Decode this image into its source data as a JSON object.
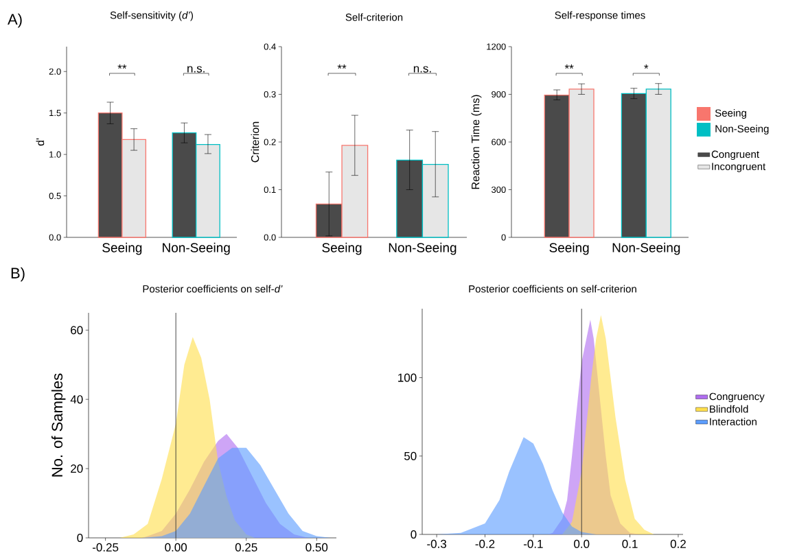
{
  "chart_data": [
    {
      "type": "bar",
      "title": "Self-sensitivity (*d’*)",
      "ylabel": "d'",
      "categories": [
        "Seeing",
        "Non-Seeing"
      ],
      "series": [
        {
          "color": "#4a4a4a",
          "values": [
            1.5,
            1.26
          ],
          "errors": [
            [
              1.37,
              1.63
            ],
            [
              1.14,
              1.38
            ]
          ]
        },
        {
          "color": "#e6e6e6",
          "values": [
            1.18,
            1.12
          ],
          "errors": [
            [
              1.05,
              1.31
            ],
            [
              1.01,
              1.24
            ]
          ]
        }
      ],
      "ylim": [
        0,
        2.3
      ],
      "yticks": [
        {
          "value": 0,
          "label": "0.0"
        },
        {
          "value": 0.5,
          "label": "0.5"
        },
        {
          "value": 1,
          "label": "1.0"
        },
        {
          "value": 1.5,
          "label": "1.5"
        },
        {
          "value": 2,
          "label": "2.0"
        }
      ],
      "annotations": [
        "A)",
        "**",
        "n.s."
      ]
    },
    {
      "type": "bar",
      "title": "Self-criterion",
      "ylabel": "Criterion",
      "categories": [
        "Seeing",
        "Non-Seeing"
      ],
      "series": [
        {
          "color": "#4a4a4a",
          "values": [
            0.07,
            0.162
          ],
          "errors": [
            [
              0.003,
              0.137
            ],
            [
              0.1,
              0.225
            ]
          ]
        },
        {
          "color": "#e6e6e6",
          "values": [
            0.193,
            0.153
          ],
          "errors": [
            [
              0.13,
              0.256
            ],
            [
              0.085,
              0.222
            ]
          ]
        }
      ],
      "ylim": [
        0,
        0.4
      ],
      "yticks": [
        {
          "value": 0,
          "label": "0.0"
        },
        0.1,
        0.2,
        0.3,
        0.4
      ],
      "annotations": [
        "**",
        "n.s."
      ]
    },
    {
      "type": "bar",
      "title": "Self-response times",
      "ylabel": "Reaction Time (ms)",
      "categories": [
        "Seeing",
        "Non-Seeing"
      ],
      "series": [
        {
          "name": "Congruent",
          "color": "#4a4a4a",
          "values": [
            895,
            905
          ],
          "errors": [
            [
              865,
              928
            ],
            [
              873,
              938
            ]
          ]
        },
        {
          "name": "Incongruent",
          "color": "#e6e6e6",
          "values": [
            933,
            933
          ],
          "errors": [
            [
              900,
              966
            ],
            [
              900,
              968
            ]
          ]
        }
      ],
      "ylim": [
        0,
        1200
      ],
      "yticks": [
        0,
        300,
        600,
        900,
        1200
      ],
      "legend": "right",
      "annotations": [
        "**",
        "*"
      ]
    },
    {
      "type": "other",
      "categories": [
        "Seeing",
        "Non-Seeing"
      ],
      "colors": [
        "#f8766d",
        "#00bfc4"
      ]
    },
    {
      "type": "area",
      "title": "Posterior coefficients on self-*d’*",
      "ylabel": "No. of Samples",
      "series": [
        {
          "color": "#b06ef0",
          "x": [
            -0.12,
            -0.1,
            -0.05,
            0,
            0.05,
            0.1,
            0.15,
            0.18,
            0.22,
            0.27,
            0.32,
            0.37,
            0.42,
            0.47
          ],
          "values": [
            0,
            0.5,
            2,
            7,
            14,
            22,
            28,
            30,
            26,
            18,
            10,
            4,
            1,
            0
          ]
        },
        {
          "color": "#ffdf4d",
          "x": [
            -0.2,
            -0.15,
            -0.1,
            -0.05,
            0,
            0.03,
            0.06,
            0.09,
            0.12,
            0.15,
            0.18,
            0.21,
            0.25,
            0.28
          ],
          "values": [
            0,
            1,
            4,
            17,
            33,
            50,
            58,
            52,
            40,
            22,
            12,
            5,
            1,
            0
          ]
        },
        {
          "color": "#5c9dff",
          "x": [
            -0.12,
            -0.05,
            0,
            0.05,
            0.1,
            0.15,
            0.2,
            0.25,
            0.3,
            0.35,
            0.4,
            0.45,
            0.5,
            0.55
          ],
          "values": [
            0,
            0.5,
            2,
            7,
            15,
            23,
            26,
            26,
            21,
            14,
            7,
            2,
            0.5,
            0
          ]
        }
      ],
      "xlim": [
        -0.31,
        0.57
      ],
      "ylim": [
        0,
        65
      ],
      "xticks": [
        {
          "value": -0.25,
          "label": "-0.25"
        },
        {
          "value": 0,
          "label": "0.00"
        },
        0.25,
        {
          "value": 0.5,
          "label": "0.50"
        }
      ],
      "yticks": [
        0,
        20,
        40,
        60
      ],
      "ref_lines": [
        {
          "axis": "x",
          "value": 0,
          "color": "#333333"
        }
      ],
      "annotations": [
        "B)"
      ]
    },
    {
      "type": "area",
      "title": "Posterior coefficients on self-criterion",
      "series": [
        {
          "name": "Congruency",
          "color": "#b06ef0",
          "x": [
            -0.07,
            -0.06,
            -0.04,
            -0.03,
            -0.02,
            -0.01,
            0,
            0.01,
            0.018,
            0.025,
            0.03,
            0.04,
            0.05,
            0.06,
            0.08,
            0.1,
            0.12
          ],
          "values": [
            0,
            1,
            10,
            22,
            50,
            80,
            110,
            125,
            137,
            125,
            110,
            80,
            50,
            25,
            7,
            1,
            0
          ]
        },
        {
          "name": "Blindfold",
          "color": "#ffdf4d",
          "x": [
            -0.04,
            -0.02,
            0,
            0.01,
            0.02,
            0.03,
            0.04,
            0.05,
            0.06,
            0.07,
            0.09,
            0.11,
            0.13,
            0.15
          ],
          "values": [
            0,
            8,
            40,
            70,
            100,
            125,
            140,
            125,
            100,
            75,
            35,
            10,
            3,
            0
          ]
        },
        {
          "name": "Interaction",
          "color": "#5c9dff",
          "x": [
            -0.3,
            -0.25,
            -0.2,
            -0.17,
            -0.15,
            -0.12,
            -0.1,
            -0.08,
            -0.06,
            -0.04,
            -0.02,
            0,
            0.03
          ],
          "values": [
            0,
            1,
            7,
            22,
            40,
            62,
            58,
            45,
            28,
            14,
            5,
            1.5,
            0
          ]
        }
      ],
      "xlim": [
        -0.33,
        0.21
      ],
      "ylim": [
        0,
        144
      ],
      "xticks": [
        -0.3,
        -0.2,
        -0.1,
        {
          "value": 0,
          "label": "0.0"
        },
        0.1,
        0.2
      ],
      "yticks": [
        0,
        50,
        100
      ],
      "legend": "right",
      "ref_lines": [
        {
          "axis": "x",
          "value": 0,
          "color": "#333333"
        }
      ]
    }
  ]
}
